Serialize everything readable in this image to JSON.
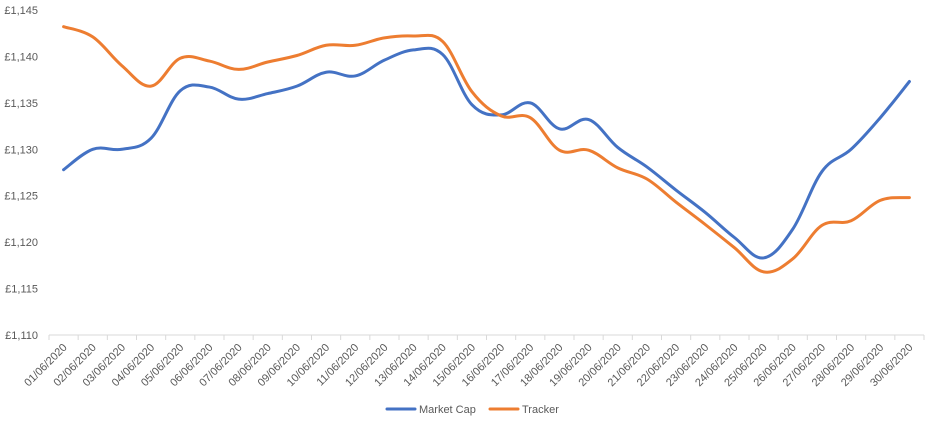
{
  "chart_data": {
    "type": "line",
    "title": "",
    "xlabel": "",
    "ylabel": "",
    "categories": [
      "01/06/2020",
      "02/06/2020",
      "03/06/2020",
      "04/06/2020",
      "05/06/2020",
      "06/06/2020",
      "07/06/2020",
      "08/06/2020",
      "09/06/2020",
      "10/06/2020",
      "11/06/2020",
      "12/06/2020",
      "13/06/2020",
      "14/06/2020",
      "15/06/2020",
      "16/06/2020",
      "17/06/2020",
      "18/06/2020",
      "19/06/2020",
      "20/06/2020",
      "21/06/2020",
      "22/06/2020",
      "23/06/2020",
      "24/06/2020",
      "25/06/2020",
      "26/06/2020",
      "27/06/2020",
      "28/06/2020",
      "29/06/2020",
      "30/06/2020"
    ],
    "series": [
      {
        "name": "Market Cap",
        "color": "#4472C4",
        "values": [
          1127.8,
          1130.0,
          1130.0,
          1131.2,
          1136.3,
          1136.7,
          1135.4,
          1136.0,
          1136.8,
          1138.3,
          1137.9,
          1139.6,
          1140.7,
          1140.2,
          1134.8,
          1133.7,
          1135.0,
          1132.2,
          1133.2,
          1130.2,
          1128.1,
          1125.6,
          1123.2,
          1120.5,
          1118.3,
          1121.4,
          1127.6,
          1130.0,
          1133.4,
          1137.3
        ]
      },
      {
        "name": "Tracker",
        "color": "#ED7D31",
        "values": [
          1143.2,
          1142.1,
          1139.0,
          1136.8,
          1139.8,
          1139.5,
          1138.6,
          1139.4,
          1140.1,
          1141.2,
          1141.2,
          1142.0,
          1142.2,
          1141.6,
          1136.2,
          1133.6,
          1133.4,
          1129.9,
          1129.9,
          1128.0,
          1126.8,
          1124.3,
          1121.9,
          1119.4,
          1116.8,
          1118.2,
          1121.8,
          1122.3,
          1124.5,
          1124.8
        ]
      }
    ],
    "ylim": [
      1110,
      1145
    ],
    "y_ticks": [
      1110,
      1115,
      1120,
      1125,
      1130,
      1135,
      1140,
      1145
    ],
    "y_tick_labels": [
      "£1,110",
      "£1,115",
      "£1,120",
      "£1,125",
      "£1,130",
      "£1,135",
      "£1,140",
      "£1,145"
    ],
    "grid": false,
    "legend_position": "bottom"
  }
}
